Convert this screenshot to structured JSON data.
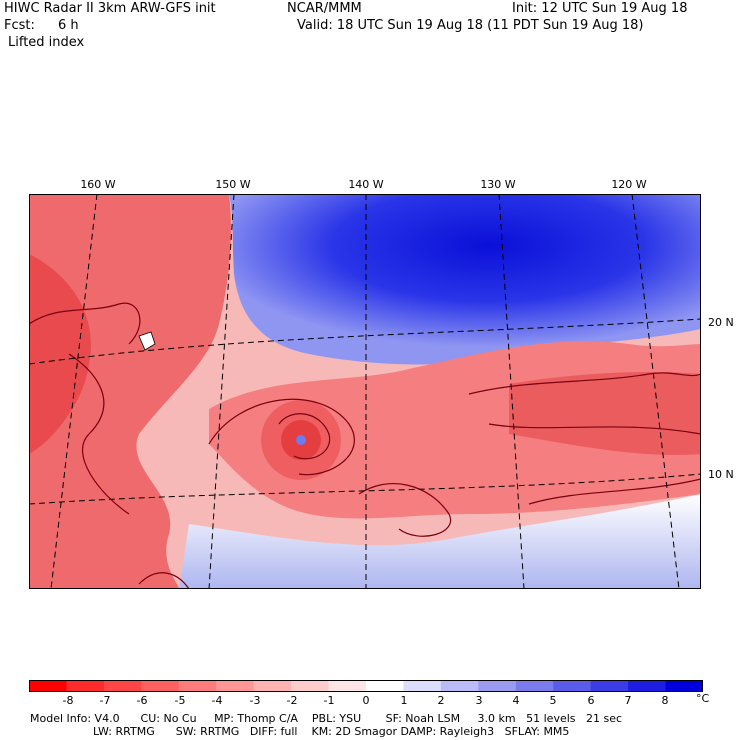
{
  "header": {
    "title": "HIWC Radar II 3km ARW-GFS init",
    "org": "NCAR/MMM",
    "init": "Init: 12 UTC Sun 19 Aug 18",
    "fcst_label": "Fcst:",
    "fcst_value": "6 h",
    "valid": "Valid: 18 UTC Sun 19 Aug 18 (11 PDT Sun 19 Aug 18)",
    "field": "Lifted index"
  },
  "map": {
    "lon_labels": [
      "160 W",
      "150 W",
      "140 W",
      "130 W",
      "120 W"
    ],
    "lat_labels": [
      "20 N",
      "10 N"
    ],
    "colors": {
      "cold": "#e8474a",
      "warm": "#f69a9c",
      "neutral": "#fde8e8",
      "stable": "#1b22e6",
      "contour": "#7a0010"
    }
  },
  "colorbar": {
    "ticks": [
      "-8",
      "-7",
      "-6",
      "-5",
      "-4",
      "-3",
      "-2",
      "-1",
      "0",
      "1",
      "2",
      "3",
      "4",
      "5",
      "6",
      "7",
      "8"
    ],
    "unit": "°C",
    "colors": [
      "#ff0000",
      "#ff2a2a",
      "#ff4545",
      "#ff6161",
      "#ff7c7c",
      "#ff9797",
      "#ffb2b2",
      "#ffcccc",
      "#ffe6e6",
      "#ffffff",
      "#dcdcfc",
      "#bbbbf8",
      "#9b9bf2",
      "#7b7bee",
      "#5c5cea",
      "#3c3ce6",
      "#1d1de4",
      "#0000dc"
    ]
  },
  "footer": {
    "line1": "Model Info: V4.0      CU: No Cu     MP: Thomp C/A    PBL: YSU       SF: Noah LSM     3.0 km   51 levels   21 sec",
    "line2": "                  LW: RRTMG      SW: RRTMG   DIFF: full    KM: 2D Smagor DAMP: Rayleigh3   SFLAY: MM5"
  }
}
